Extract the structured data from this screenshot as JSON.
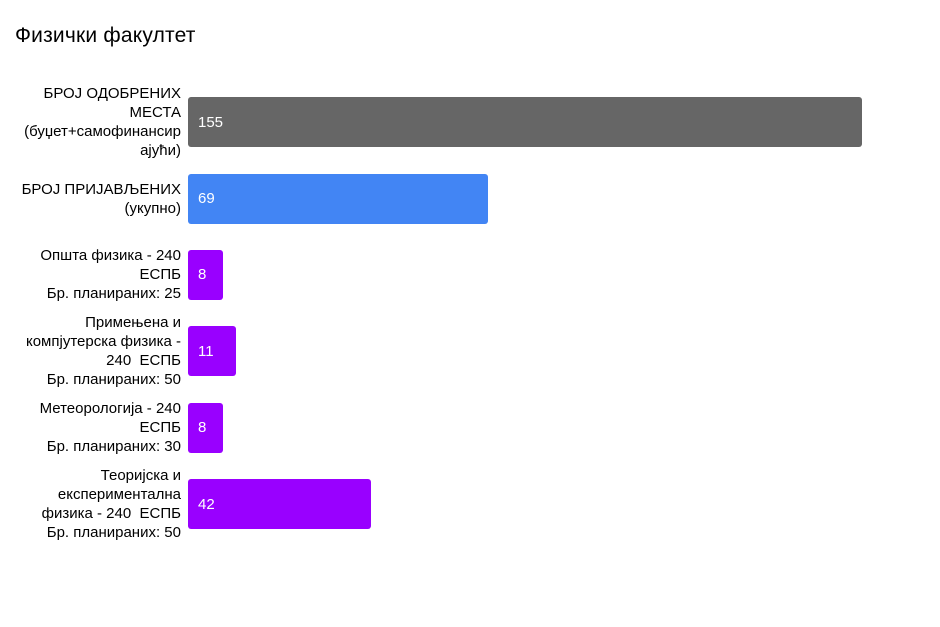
{
  "chart_data": {
    "type": "bar",
    "orientation": "horizontal",
    "title": "Физички факултет",
    "legend": "none",
    "grid": false,
    "axes_visible": false,
    "value_labels": "inside-start",
    "xlim": [
      0,
      155
    ],
    "colors": {
      "approved": "#666666",
      "applied": "#4285f4",
      "program": "#9900ff",
      "value_text": "#ffffff",
      "label_text": "#000000"
    },
    "bars": [
      {
        "label": "БРОЈ ОДОБРЕНИХ\nМЕСТА\n(буџет+самофинансир\nајући)",
        "value": 155,
        "color": "#666666"
      },
      {
        "label": "БРОЈ ПРИЈАВЉЕНИХ\n(укупно)",
        "value": 69,
        "color": "#4285f4"
      },
      {
        "label": "Општа физика - 240\nЕСПБ\nБр. планираних: 25",
        "value": 8,
        "color": "#9900ff"
      },
      {
        "label": "Примењена и\nкомпјутерска физика -\n240  ЕСПБ\nБр. планираних: 50",
        "value": 11,
        "color": "#9900ff"
      },
      {
        "label": "Метеорологија - 240\nЕСПБ\nБр. планираних: 30",
        "value": 8,
        "color": "#9900ff"
      },
      {
        "label": "Теоријска и\nекспериментална\nфизика - 240  ЕСПБ\nБр. планираних: 50",
        "value": 42,
        "color": "#9900ff"
      }
    ]
  }
}
